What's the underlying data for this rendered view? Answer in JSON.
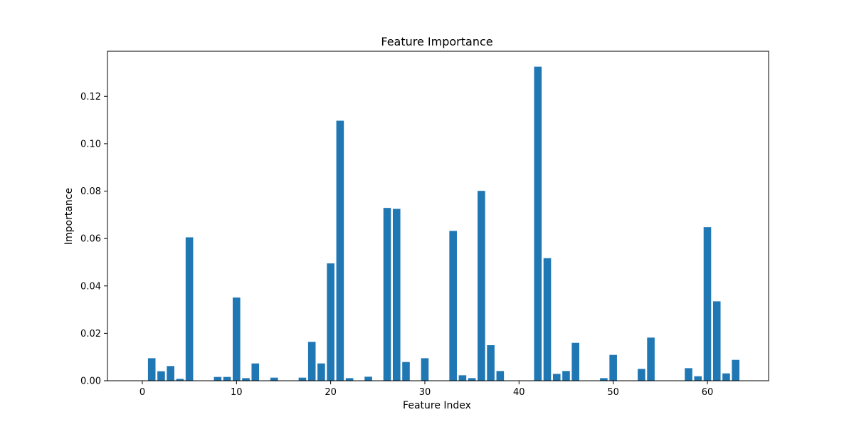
{
  "chart_data": {
    "type": "bar",
    "title": "Feature Importance",
    "xlabel": "Feature Index",
    "ylabel": "Importance",
    "xlim": [
      -3.7,
      66.5
    ],
    "ylim": [
      0,
      0.139
    ],
    "x_ticks": [
      0,
      10,
      20,
      30,
      40,
      50,
      60
    ],
    "y_ticks": [
      0.0,
      0.02,
      0.04,
      0.06,
      0.08,
      0.1,
      0.12
    ],
    "y_tick_labels": [
      "0.00",
      "0.02",
      "0.04",
      "0.06",
      "0.08",
      "0.10",
      "0.12"
    ],
    "grid": false,
    "bar_color": "#1f77b4",
    "x": [
      0,
      1,
      2,
      3,
      4,
      5,
      6,
      7,
      8,
      9,
      10,
      11,
      12,
      13,
      14,
      15,
      16,
      17,
      18,
      19,
      20,
      21,
      22,
      23,
      24,
      25,
      26,
      27,
      28,
      29,
      30,
      31,
      32,
      33,
      34,
      35,
      36,
      37,
      38,
      39,
      40,
      41,
      42,
      43,
      44,
      45,
      46,
      47,
      48,
      49,
      50,
      51,
      52,
      53,
      54,
      55,
      56,
      57,
      58,
      59,
      60,
      61,
      62,
      63
    ],
    "values": [
      0,
      0.0095,
      0.004,
      0.0062,
      0.0008,
      0.0605,
      0,
      0,
      0.0016,
      0.0016,
      0.0351,
      0.0011,
      0.0073,
      0,
      0.0013,
      0,
      0,
      0.0013,
      0.0164,
      0.0073,
      0.0495,
      0.1097,
      0.0011,
      0,
      0.0017,
      0,
      0.0729,
      0.0725,
      0.0079,
      0,
      0.0095,
      0,
      0,
      0.0632,
      0.0023,
      0.0011,
      0.0801,
      0.015,
      0.0041,
      0,
      0,
      0,
      0.1325,
      0.0517,
      0.0029,
      0.0041,
      0.016,
      0,
      0,
      0.0011,
      0.0109,
      0,
      0,
      0.005,
      0.0182,
      0,
      0,
      0,
      0.0053,
      0.0019,
      0.0648,
      0.0335,
      0.0031,
      0.0088
    ]
  }
}
